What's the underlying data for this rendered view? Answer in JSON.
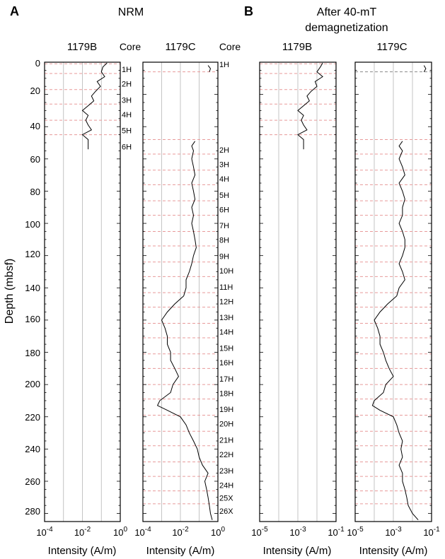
{
  "figure": {
    "panel_a_letter": "A",
    "panel_a_title": "NRM",
    "panel_b_letter": "B",
    "panel_b_title_line1": "After 40-mT",
    "panel_b_title_line2": "demagnetization",
    "ylabel": "Depth (mbsf)",
    "xlabel": "Intensity (A/m)",
    "core_header": "Core",
    "depth_ticks": [
      "0",
      "20",
      "40",
      "60",
      "80",
      "100",
      "120",
      "140",
      "160",
      "180",
      "200",
      "220",
      "240",
      "260",
      "280"
    ]
  },
  "chart_data": [
    {
      "type": "line",
      "panel": "A",
      "title": "NRM",
      "column": "1179B",
      "xlabel": "Intensity (A/m)",
      "ylabel": "Depth (mbsf)",
      "xscale": "log",
      "xlim": [
        0.0001,
        1
      ],
      "ylim": [
        0,
        285
      ],
      "x_tick_labels": [
        "10^-4",
        "10^-2",
        "10^0"
      ],
      "depth_range": [
        0,
        55
      ],
      "series": [
        {
          "values": [
            [
              0.5,
              0.2
            ],
            [
              3,
              0.12
            ],
            [
              6,
              0.1
            ],
            [
              9,
              0.15
            ],
            [
              12,
              0.06
            ],
            [
              15,
              0.09
            ],
            [
              18,
              0.05
            ],
            [
              21,
              0.03
            ],
            [
              24,
              0.04
            ],
            [
              27,
              0.02
            ],
            [
              30,
              0.01
            ],
            [
              33,
              0.02
            ],
            [
              36,
              0.015
            ],
            [
              39,
              0.02
            ],
            [
              42,
              0.03
            ],
            [
              45,
              0.01
            ],
            [
              48,
              0.02
            ],
            [
              51,
              0.02
            ],
            [
              54,
              0.02
            ]
          ]
        }
      ],
      "core_breaks": [
        1,
        7,
        17,
        26,
        36,
        45
      ],
      "core_labels": [
        {
          "label": "1H",
          "depth": 7
        },
        {
          "label": "2H",
          "depth": 16
        },
        {
          "label": "3H",
          "depth": 26
        },
        {
          "label": "4H",
          "depth": 35
        },
        {
          "label": "5H",
          "depth": 45
        },
        {
          "label": "6H",
          "depth": 55
        }
      ]
    },
    {
      "type": "line",
      "panel": "A",
      "title": "NRM",
      "column": "1179C",
      "xlabel": "Intensity (A/m)",
      "xscale": "log",
      "xlim": [
        0.0001,
        1
      ],
      "ylim": [
        0,
        285
      ],
      "x_tick_labels": [
        "10^-4",
        "10^-2",
        "10^0"
      ],
      "series": [
        {
          "values": [
            [
              2,
              0.3
            ],
            [
              4,
              0.4
            ],
            [
              6,
              0.35
            ],
            [
              49,
              0.06
            ],
            [
              52,
              0.04
            ],
            [
              55,
              0.05
            ],
            [
              60,
              0.04
            ],
            [
              65,
              0.05
            ],
            [
              70,
              0.06
            ],
            [
              75,
              0.04
            ],
            [
              80,
              0.05
            ],
            [
              85,
              0.06
            ],
            [
              90,
              0.04
            ],
            [
              95,
              0.05
            ],
            [
              100,
              0.04
            ],
            [
              105,
              0.05
            ],
            [
              110,
              0.06
            ],
            [
              115,
              0.07
            ],
            [
              120,
              0.05
            ],
            [
              125,
              0.04
            ],
            [
              130,
              0.03
            ],
            [
              135,
              0.02
            ],
            [
              140,
              0.02
            ],
            [
              145,
              0.015
            ],
            [
              150,
              0.005
            ],
            [
              155,
              0.002
            ],
            [
              160,
              0.001
            ],
            [
              165,
              0.0015
            ],
            [
              170,
              0.002
            ],
            [
              175,
              0.002
            ],
            [
              180,
              0.003
            ],
            [
              185,
              0.003
            ],
            [
              190,
              0.005
            ],
            [
              195,
              0.008
            ],
            [
              200,
              0.004
            ],
            [
              205,
              0.003
            ],
            [
              210,
              0.0008
            ],
            [
              213,
              0.0006
            ],
            [
              216,
              0.002
            ],
            [
              220,
              0.01
            ],
            [
              225,
              0.02
            ],
            [
              230,
              0.03
            ],
            [
              235,
              0.05
            ],
            [
              240,
              0.08
            ],
            [
              245,
              0.1
            ],
            [
              250,
              0.15
            ],
            [
              255,
              0.3
            ],
            [
              260,
              0.2
            ],
            [
              265,
              0.25
            ],
            [
              270,
              0.3
            ],
            [
              275,
              0.35
            ],
            [
              280,
              0.4
            ],
            [
              284,
              0.5
            ]
          ]
        }
      ],
      "core_breaks": [
        6,
        48,
        57,
        67,
        76,
        86,
        95,
        105,
        114,
        124,
        133,
        143,
        152,
        162,
        171,
        181,
        190,
        200,
        209,
        219,
        229,
        238,
        248,
        257,
        266,
        274
      ],
      "core_labels": [
        {
          "label": "1H",
          "depth": 4
        },
        {
          "label": "2H",
          "depth": 57
        },
        {
          "label": "3H",
          "depth": 66
        },
        {
          "label": "4H",
          "depth": 75
        },
        {
          "label": "5H",
          "depth": 85
        },
        {
          "label": "6H",
          "depth": 94
        },
        {
          "label": "7H",
          "depth": 104
        },
        {
          "label": "8H",
          "depth": 113
        },
        {
          "label": "9H",
          "depth": 123
        },
        {
          "label": "10H",
          "depth": 132
        },
        {
          "label": "11H",
          "depth": 142
        },
        {
          "label": "12H",
          "depth": 151
        },
        {
          "label": "13H",
          "depth": 161
        },
        {
          "label": "14H",
          "depth": 170
        },
        {
          "label": "15H",
          "depth": 180
        },
        {
          "label": "16H",
          "depth": 189
        },
        {
          "label": "17H",
          "depth": 199
        },
        {
          "label": "18H",
          "depth": 208
        },
        {
          "label": "19H",
          "depth": 218
        },
        {
          "label": "20H",
          "depth": 227
        },
        {
          "label": "21H",
          "depth": 237
        },
        {
          "label": "22H",
          "depth": 246
        },
        {
          "label": "23H",
          "depth": 256
        },
        {
          "label": "24H",
          "depth": 265
        },
        {
          "label": "25X",
          "depth": 273
        },
        {
          "label": "26X",
          "depth": 281
        }
      ]
    },
    {
      "type": "line",
      "panel": "B",
      "title": "After 40-mT demagnetization",
      "column": "1179B",
      "xlabel": "Intensity (A/m)",
      "xscale": "log",
      "xlim": [
        1e-05,
        0.1
      ],
      "ylim": [
        0,
        285
      ],
      "x_tick_labels": [
        "10^-5",
        "10^-3",
        "10^-1"
      ],
      "series": [
        {
          "values": [
            [
              0.5,
              0.02
            ],
            [
              3,
              0.015
            ],
            [
              6,
              0.01
            ],
            [
              9,
              0.02
            ],
            [
              12,
              0.008
            ],
            [
              15,
              0.01
            ],
            [
              18,
              0.005
            ],
            [
              21,
              0.003
            ],
            [
              24,
              0.004
            ],
            [
              27,
              0.002
            ],
            [
              30,
              0.001
            ],
            [
              33,
              0.002
            ],
            [
              36,
              0.0015
            ],
            [
              39,
              0.002
            ],
            [
              42,
              0.003
            ],
            [
              45,
              0.001
            ],
            [
              48,
              0.002
            ],
            [
              51,
              0.002
            ],
            [
              54,
              0.002
            ]
          ]
        }
      ],
      "core_breaks": [
        1,
        7,
        17,
        26,
        36,
        45
      ]
    },
    {
      "type": "line",
      "panel": "B",
      "title": "After 40-mT demagnetization",
      "column": "1179C",
      "xlabel": "Intensity (A/m)",
      "xscale": "log",
      "xlim": [
        1e-05,
        0.1
      ],
      "ylim": [
        0,
        285
      ],
      "x_tick_labels": [
        "10^-5",
        "10^-3",
        "10^-1"
      ],
      "series": [
        {
          "values": [
            [
              2,
              0.04
            ],
            [
              4,
              0.05
            ],
            [
              6,
              0.04
            ],
            [
              49,
              0.003
            ],
            [
              52,
              0.002
            ],
            [
              55,
              0.003
            ],
            [
              60,
              0.002
            ],
            [
              65,
              0.003
            ],
            [
              70,
              0.004
            ],
            [
              75,
              0.002
            ],
            [
              80,
              0.003
            ],
            [
              85,
              0.004
            ],
            [
              90,
              0.003
            ],
            [
              95,
              0.003
            ],
            [
              100,
              0.002
            ],
            [
              105,
              0.003
            ],
            [
              110,
              0.004
            ],
            [
              115,
              0.004
            ],
            [
              120,
              0.003
            ],
            [
              125,
              0.002
            ],
            [
              130,
              0.003
            ],
            [
              135,
              0.004
            ],
            [
              140,
              0.002
            ],
            [
              145,
              0.0015
            ],
            [
              150,
              0.0005
            ],
            [
              155,
              0.0002
            ],
            [
              160,
              0.0001
            ],
            [
              165,
              0.00015
            ],
            [
              170,
              0.0002
            ],
            [
              175,
              0.0002
            ],
            [
              180,
              0.0003
            ],
            [
              185,
              0.0004
            ],
            [
              190,
              0.0006
            ],
            [
              195,
              0.001
            ],
            [
              200,
              0.0004
            ],
            [
              205,
              0.0003
            ],
            [
              210,
              0.0001
            ],
            [
              213,
              8e-05
            ],
            [
              216,
              0.0002
            ],
            [
              220,
              0.001
            ],
            [
              225,
              0.0015
            ],
            [
              230,
              0.002
            ],
            [
              235,
              0.003
            ],
            [
              240,
              0.0025
            ],
            [
              245,
              0.003
            ],
            [
              250,
              0.002
            ],
            [
              255,
              0.003
            ],
            [
              260,
              0.003
            ],
            [
              265,
              0.004
            ],
            [
              270,
              0.005
            ],
            [
              275,
              0.006
            ],
            [
              280,
              0.01
            ],
            [
              284,
              0.02
            ]
          ]
        }
      ],
      "core_breaks": [
        6,
        48,
        57,
        67,
        76,
        86,
        95,
        105,
        114,
        124,
        133,
        143,
        152,
        162,
        171,
        181,
        190,
        200,
        209,
        219,
        229,
        238,
        248,
        257,
        266,
        274
      ]
    }
  ]
}
